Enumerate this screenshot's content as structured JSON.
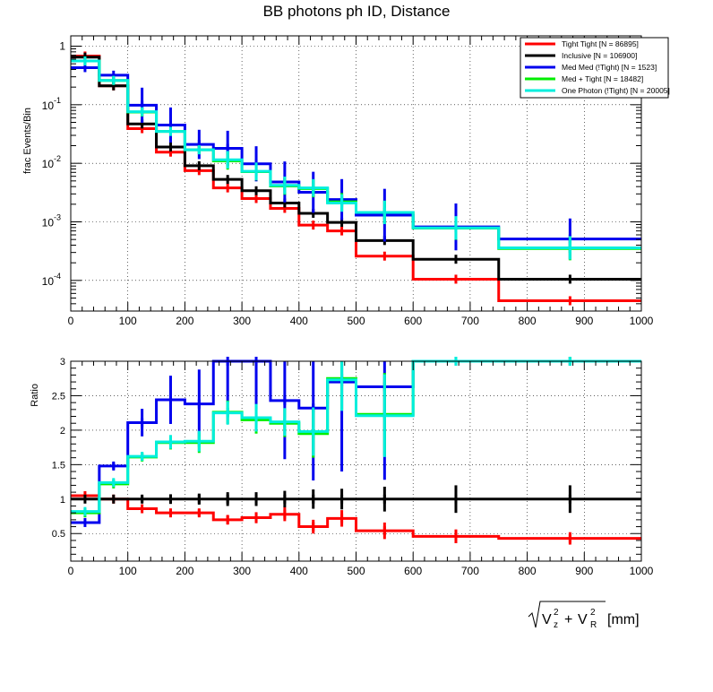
{
  "title": "BB photons ph ID, Distance",
  "colors": {
    "tight_tight": "#ff0000",
    "inclusive": "#000000",
    "med_med": "#0000ee",
    "med_tight": "#00ee00",
    "one_photon": "#00eedd"
  },
  "x_axis_label": {
    "root_main": "V",
    "z_sub": "z",
    "r_sub": "R",
    "sup": "2",
    "plus": "+",
    "unit": "[mm]"
  },
  "chart_data": [
    {
      "type": "line",
      "step": true,
      "title": "BB photons ph ID, Distance",
      "ylabel": "frac Events/Bin",
      "xlabel": "sqrt(Vz^2 + VR^2) [mm]",
      "yscale": "log",
      "xlim": [
        0,
        1000
      ],
      "ylim": [
        3e-05,
        1.5
      ],
      "xticks": [
        0,
        100,
        200,
        300,
        400,
        500,
        600,
        700,
        800,
        900,
        1000
      ],
      "xtick_labels": [
        "0",
        "100",
        "200",
        "300",
        "400",
        "500",
        "600",
        "700",
        "800",
        "900",
        "1000"
      ],
      "yticks": [
        1,
        0.1,
        0.01,
        0.001,
        0.0001
      ],
      "ytick_labels": [
        {
          "base": "1",
          "exp": ""
        },
        {
          "base": "10",
          "exp": "-1"
        },
        {
          "base": "10",
          "exp": "-2"
        },
        {
          "base": "10",
          "exp": "-3"
        },
        {
          "base": "10",
          "exp": "-4"
        }
      ],
      "bin_edges": [
        0,
        50,
        100,
        150,
        200,
        250,
        300,
        350,
        400,
        450,
        500,
        600,
        750,
        1000
      ],
      "grid": true,
      "legend_position": "top-right",
      "series": [
        {
          "key": "tight_tight",
          "name": "Tight Tight [N = 86895]",
          "values": [
            0.68,
            0.21,
            0.039,
            0.0155,
            0.0075,
            0.0038,
            0.0025,
            0.0017,
            0.00088,
            0.0007,
            0.00026,
            0.000105,
            4.5e-05
          ],
          "errors": [
            0,
            0,
            0,
            0,
            0,
            0,
            0,
            0,
            0,
            0,
            0,
            0,
            0
          ]
        },
        {
          "key": "inclusive",
          "name": "Inclusive [N = 106900]",
          "values": [
            0.65,
            0.21,
            0.047,
            0.019,
            0.0091,
            0.0053,
            0.0034,
            0.0021,
            0.0014,
            0.00098,
            0.00048,
            0.00023,
            0.000105
          ],
          "errors": [
            0,
            0,
            0,
            0,
            0,
            0,
            0,
            0,
            0,
            0,
            0,
            0,
            0
          ]
        },
        {
          "key": "med_med",
          "name": "Med Med (!Tight) [N = 1523]",
          "values": [
            0.43,
            0.32,
            0.098,
            0.045,
            0.021,
            0.018,
            0.0098,
            0.0048,
            0.0032,
            0.0024,
            0.0013,
            0.00082,
            0.00051
          ],
          "errors": [
            0,
            0,
            0.3,
            0.3,
            0.25,
            0.3,
            0.3,
            0.35,
            0.35,
            0.35,
            0.45,
            0.4,
            0.35
          ]
        },
        {
          "key": "med_tight",
          "name": "Med + Tight [N = 18482]",
          "values": [
            0.56,
            0.26,
            0.075,
            0.035,
            0.017,
            0.011,
            0.0072,
            0.0041,
            0.0037,
            0.0022,
            0.00145,
            0.00078,
            0.00035
          ],
          "errors": [
            0,
            0,
            0,
            0,
            0,
            0.15,
            0.15,
            0.15,
            0.15,
            0.15,
            0.2,
            0.2,
            0.2
          ]
        },
        {
          "key": "one_photon",
          "name": "One Photon (!Tight) [N = 20005]",
          "values": [
            0.56,
            0.26,
            0.076,
            0.035,
            0.017,
            0.0115,
            0.0073,
            0.0042,
            0.0038,
            0.0021,
            0.00145,
            0.00079,
            0.00036
          ],
          "errors": [
            0,
            0,
            0,
            0,
            0,
            0.15,
            0.15,
            0.15,
            0.15,
            0.15,
            0.2,
            0.2,
            0.2
          ]
        }
      ]
    },
    {
      "type": "line",
      "step": true,
      "ylabel": "Ratio",
      "xlabel": "",
      "yscale": "linear",
      "xlim": [
        0,
        1000
      ],
      "ylim": [
        0.1,
        3
      ],
      "xticks": [
        0,
        100,
        200,
        300,
        400,
        500,
        600,
        700,
        800,
        900,
        1000
      ],
      "xtick_labels": [
        "0",
        "100",
        "200",
        "300",
        "400",
        "500",
        "600",
        "700",
        "800",
        "900",
        "1000"
      ],
      "yticks": [
        0.5,
        1,
        1.5,
        2,
        2.5,
        3
      ],
      "ytick_labels": [
        "0.5",
        "1",
        "1.5",
        "2",
        "2.5",
        "3"
      ],
      "bin_edges": [
        0,
        50,
        100,
        150,
        200,
        250,
        300,
        350,
        400,
        450,
        500,
        600,
        750,
        1000
      ],
      "grid": true,
      "series": [
        {
          "key": "tight_tight",
          "values": [
            1.05,
            1.0,
            0.86,
            0.8,
            0.8,
            0.7,
            0.73,
            0.78,
            0.6,
            0.72,
            0.54,
            0.46,
            0.43
          ],
          "errors": [
            0,
            0,
            0,
            0.04,
            0.05,
            0.07,
            0.08,
            0.1,
            0.1,
            0.12,
            0.12,
            0.1,
            0.09
          ]
        },
        {
          "key": "inclusive",
          "values": [
            1,
            1,
            1,
            1,
            1,
            1,
            1,
            1,
            1,
            1,
            1,
            1,
            1
          ],
          "errors": [
            0,
            0,
            0.05,
            0.07,
            0.08,
            0.1,
            0.1,
            0.12,
            0.14,
            0.15,
            0.18,
            0.2,
            0.2
          ]
        },
        {
          "key": "med_med",
          "values": [
            0.66,
            1.48,
            2.11,
            2.44,
            2.38,
            3.0,
            3.0,
            2.43,
            2.32,
            2.7,
            2.63,
            3.0,
            3.0
          ],
          "errors": [
            0,
            0.05,
            0.2,
            0.35,
            0.5,
            0.6,
            0.7,
            0.85,
            1.05,
            1.3,
            1.35,
            0,
            0
          ]
        },
        {
          "key": "med_tight",
          "values": [
            0.8,
            1.22,
            1.61,
            1.82,
            1.82,
            2.26,
            2.15,
            2.1,
            1.95,
            2.75,
            2.23,
            3.0,
            3.0
          ],
          "errors": [
            0,
            0.03,
            0.06,
            0.1,
            0.15,
            0.17,
            0.2,
            0.2,
            0.35,
            0.45,
            0.6,
            0,
            0
          ]
        },
        {
          "key": "one_photon",
          "values": [
            0.82,
            1.24,
            1.62,
            1.83,
            1.84,
            2.25,
            2.18,
            2.12,
            1.98,
            2.73,
            2.21,
            3.0,
            3.0
          ],
          "errors": [
            0,
            0.03,
            0.06,
            0.1,
            0.15,
            0.17,
            0.2,
            0.2,
            0.35,
            0.45,
            0.6,
            0,
            0
          ]
        }
      ]
    }
  ]
}
